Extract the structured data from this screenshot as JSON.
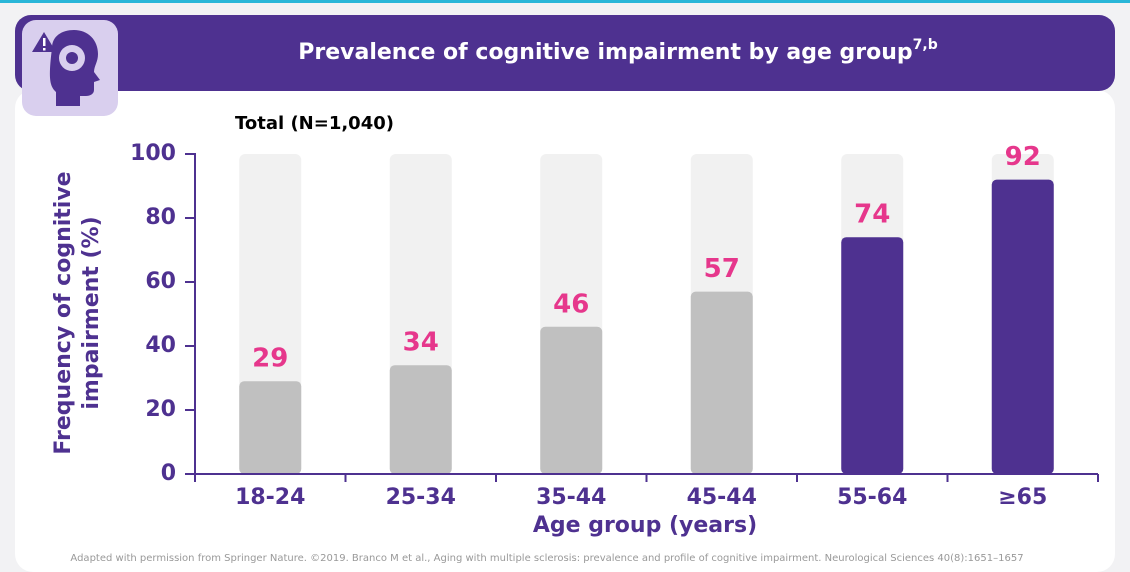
{
  "chart_data": {
    "type": "bar",
    "title": "Prevalence of cognitive impairment by age group",
    "title_superscript": "7,b",
    "subtitle": "Total (N=1,040)",
    "y_label": [
      "Frequency of cognitive",
      "impairment (%)"
    ],
    "x_label": "Age group (years)",
    "categories": [
      "18-24",
      "25-34",
      "35-44",
      "45-44",
      "55-64",
      "≥65"
    ],
    "values": [
      29,
      34,
      46,
      57,
      74,
      92
    ],
    "colors": [
      "#c0c0c0",
      "#c0c0c0",
      "#c0c0c0",
      "#c0c0c0",
      "#4e3190",
      "#4e3190"
    ],
    "label_color": "#e6378c",
    "ylim": [
      0,
      100
    ],
    "yticks": [
      0,
      20,
      40,
      60,
      80,
      100
    ],
    "footnote": "Adapted with permission from Springer Nature. ©2019. Branco M et al., Aging with multiple sclerosis: prevalence and profile of cognitive impairment. Neurological Sciences 40(8):1651–1657"
  }
}
